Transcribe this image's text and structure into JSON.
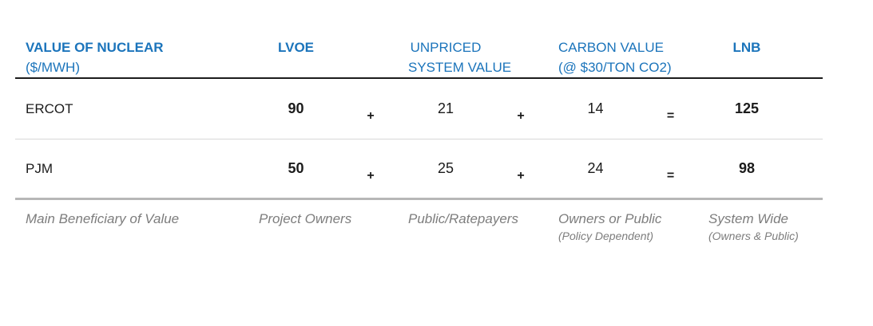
{
  "colors": {
    "header_blue": "#1b74bb",
    "text_dark": "#1b1b1b",
    "muted_gray": "#7d7d7d",
    "divider_dark": "#1c1c1c",
    "divider_light": "#d8d8d8",
    "divider_medium": "#b7b7b7"
  },
  "table": {
    "header": {
      "label_line1": "VALUE OF NUCLEAR",
      "label_line2": "($/MWH)",
      "lvoe": "LVOE",
      "unpriced_line1": "UNPRICED",
      "unpriced_line2": "SYSTEM VALUE",
      "carbon_line1": "CARBON VALUE",
      "carbon_line2": "(@ $30/TON CO2)",
      "lnb": "LNB"
    },
    "operators": {
      "plus": "+",
      "equals": "="
    },
    "rows": [
      {
        "label": "ERCOT",
        "lvoe": "90",
        "unpriced": "21",
        "carbon": "14",
        "lnb": "125"
      },
      {
        "label": "PJM",
        "lvoe": "50",
        "unpriced": "25",
        "carbon": "24",
        "lnb": "98"
      }
    ],
    "beneficiary": {
      "label": "Main Beneficiary of Value",
      "lvoe": "Project Owners",
      "unpriced": "Public/Ratepayers",
      "carbon_line1": "Owners or Public",
      "carbon_line2": "(Policy Dependent)",
      "lnb_line1": "System Wide",
      "lnb_line2": "(Owners & Public)"
    }
  },
  "chart_data": {
    "type": "table",
    "title": "VALUE OF NUCLEAR ($/MWH)",
    "columns": [
      "VALUE OF NUCLEAR ($/MWH)",
      "LVOE",
      "UNPRICED SYSTEM VALUE",
      "CARBON VALUE (@ $30/TON CO2)",
      "LNB"
    ],
    "relationship": "LVOE + UNPRICED SYSTEM VALUE + CARBON VALUE = LNB",
    "rows": [
      {
        "region": "ERCOT",
        "lvoe": 90,
        "unpriced_system_value": 21,
        "carbon_value": 14,
        "lnb": 125
      },
      {
        "region": "PJM",
        "lvoe": 50,
        "unpriced_system_value": 25,
        "carbon_value": 24,
        "lnb": 98
      }
    ],
    "main_beneficiary_of_value": {
      "lvoe": "Project Owners",
      "unpriced_system_value": "Public/Ratepayers",
      "carbon_value": "Owners or Public (Policy Dependent)",
      "lnb": "System Wide (Owners & Public)"
    }
  }
}
